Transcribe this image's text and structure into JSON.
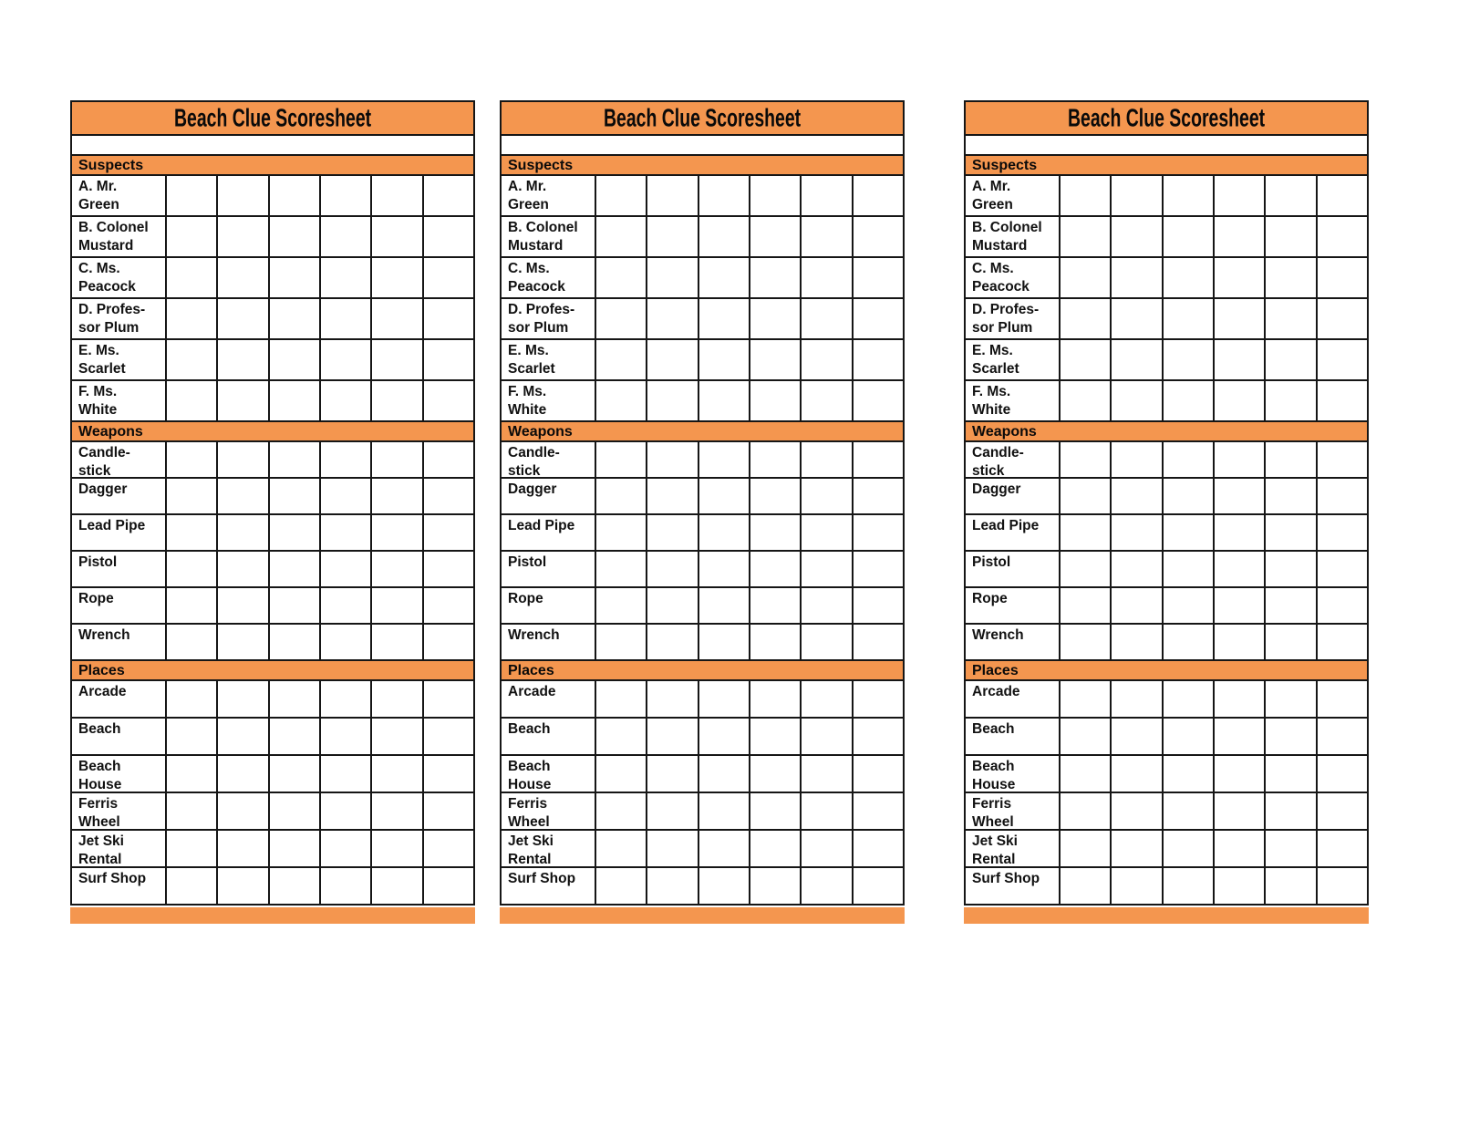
{
  "page": {
    "background_color": "#ffffff"
  },
  "scoresheet": {
    "title": "Beach Clue Scoresheet",
    "accent_color": "#F4964F",
    "border_color": "#161616",
    "copies": 3,
    "grid_columns": 6,
    "sections": [
      {
        "label": "Suspects",
        "rows": [
          "A. Mr.\nGreen",
          "B. Colonel\nMustard",
          "C. Ms.\nPeacock",
          "D. Profes-\nsor Plum",
          "E. Ms.\nScarlet",
          "F. Ms.\nWhite"
        ]
      },
      {
        "label": "Weapons",
        "rows": [
          "Candle-\nstick",
          "Dagger",
          "Lead Pipe",
          "Pistol",
          "Rope",
          "Wrench"
        ]
      },
      {
        "label": "Places",
        "rows": [
          "Arcade",
          "Beach",
          "Beach\nHouse",
          "Ferris\nWheel",
          "Jet Ski\nRental",
          "Surf Shop"
        ]
      }
    ]
  }
}
